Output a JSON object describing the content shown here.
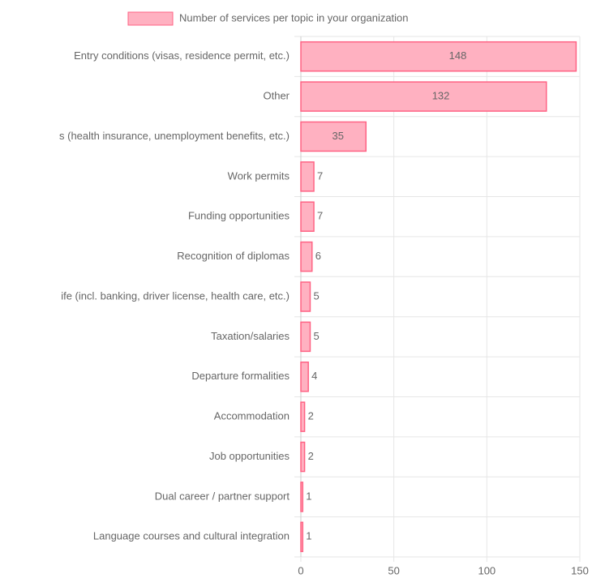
{
  "chart_data": {
    "type": "bar",
    "orientation": "horizontal",
    "legend": "Number of services per topic in your organization",
    "categories": [
      "Entry conditions (visas, residence permit, etc.)",
      "Other",
      "s (health insurance, unemployment benefits, etc.)",
      "Work permits",
      "Funding opportunities",
      "Recognition of diplomas",
      "ife (incl. banking, driver license, health care, etc.)",
      "Taxation/salaries",
      "Departure formalities",
      "Accommodation",
      "Job opportunities",
      "Dual career / partner support",
      "Language courses and cultural integration"
    ],
    "values": [
      148,
      132,
      35,
      7,
      7,
      6,
      5,
      5,
      4,
      2,
      2,
      1,
      1
    ],
    "color": "#ffb1c1",
    "border_color": "#ff6384",
    "xlim": [
      0,
      150
    ],
    "xticks": [
      0,
      50,
      100,
      150
    ],
    "grid": true
  }
}
